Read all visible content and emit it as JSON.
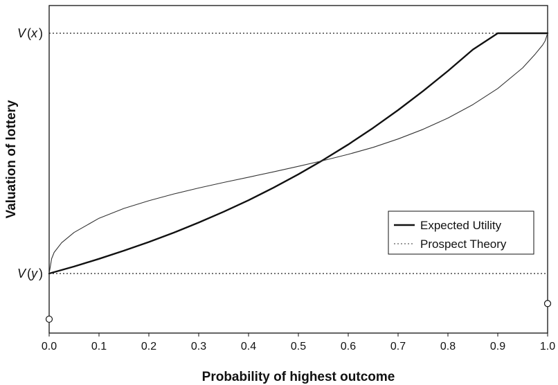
{
  "chart_data": {
    "type": "line",
    "title": "",
    "xlabel": "Probability of highest outcome",
    "ylabel": "Valuation of lottery",
    "xlim": [
      0,
      1
    ],
    "ylim": [
      -0.19,
      1.12
    ],
    "x_ticks": [
      "0.0",
      "0.1",
      "0.2",
      "0.3",
      "0.4",
      "0.5",
      "0.6",
      "0.7",
      "0.8",
      "0.9",
      "1.0"
    ],
    "grid": false,
    "legend_position": "lower-right",
    "reference_lines": [
      {
        "label": "V(y)",
        "label_parts": [
          "V",
          "(",
          "y",
          ")"
        ],
        "y": 0,
        "style": "dotted"
      },
      {
        "label": "V(x)",
        "label_parts": [
          "V",
          "(",
          "x",
          ")"
        ],
        "y": 1,
        "style": "dotted"
      }
    ],
    "series": [
      {
        "name": "Expected Utility",
        "style": "solid-thick",
        "color": "#111111",
        "x": [
          0,
          0.05,
          0.1,
          0.15,
          0.2,
          0.25,
          0.3,
          0.35,
          0.4,
          0.45,
          0.5,
          0.55,
          0.6,
          0.65,
          0.7,
          0.75,
          0.8,
          0.85,
          0.9,
          0.95,
          1.0
        ],
        "y": [
          0,
          0.029,
          0.061,
          0.095,
          0.131,
          0.17,
          0.212,
          0.257,
          0.305,
          0.357,
          0.413,
          0.473,
          0.537,
          0.606,
          0.68,
          0.759,
          0.843,
          0.932,
          1.0,
          1.0,
          1.0
        ]
      },
      {
        "name": "Prospect Theory",
        "style": "thin",
        "color": "#333333",
        "x": [
          0,
          0.005,
          0.01,
          0.025,
          0.05,
          0.1,
          0.15,
          0.2,
          0.25,
          0.3,
          0.35,
          0.4,
          0.45,
          0.5,
          0.55,
          0.6,
          0.65,
          0.7,
          0.75,
          0.8,
          0.85,
          0.9,
          0.95,
          0.975,
          0.99,
          0.995,
          1.0
        ],
        "y": [
          0,
          0.062,
          0.088,
          0.128,
          0.171,
          0.23,
          0.271,
          0.303,
          0.331,
          0.356,
          0.379,
          0.401,
          0.423,
          0.446,
          0.47,
          0.496,
          0.525,
          0.56,
          0.6,
          0.647,
          0.703,
          0.77,
          0.856,
          0.913,
          0.951,
          0.968,
          1.0
        ]
      }
    ],
    "endpoint_markers": [
      {
        "x": 0,
        "y": -0.19
      },
      {
        "x": 1,
        "y": -0.125
      }
    ]
  }
}
